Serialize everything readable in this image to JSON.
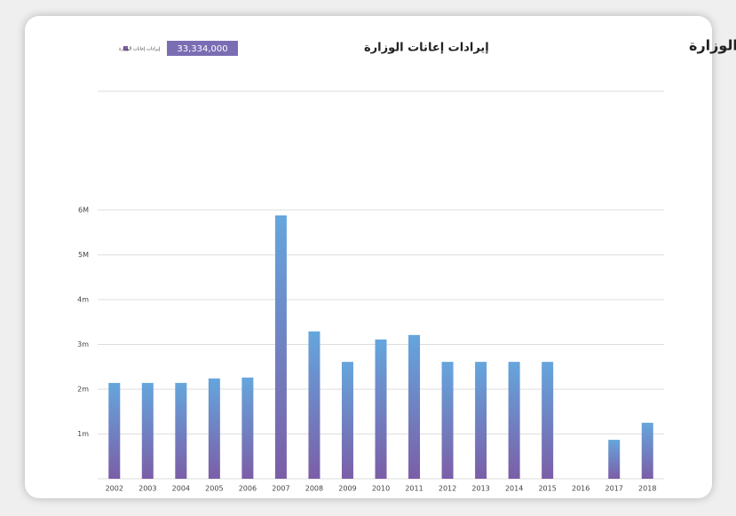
{
  "header": {
    "title": "إيرادات إعانات الوزارة",
    "kpi_label": "إيرادات إعانات الوزارة",
    "kpi_value": "33,334,000"
  },
  "chart_data": {
    "type": "bar",
    "categories": [
      "2002",
      "2003",
      "2004",
      "2005",
      "2006",
      "2007",
      "2008",
      "2009",
      "2010",
      "2011",
      "2012",
      "2013",
      "2014",
      "2015",
      "2016",
      "2017",
      "2018"
    ],
    "series": [
      {
        "name": "إيرادات إعانات الوزارة",
        "color": "#7b5ea7",
        "gradient_color": "#65a6dd",
        "values": [
          2140000,
          2140000,
          2140000,
          2240000,
          2260000,
          5880000,
          3290000,
          2610000,
          3110000,
          3210000,
          2610000,
          2610000,
          2610000,
          2610000,
          0,
          870000,
          1250000
        ]
      }
    ],
    "ylim": [
      0,
      8650000
    ],
    "yticks": [
      {
        "value": 1000000,
        "label": "1m"
      },
      {
        "value": 2000000,
        "label": "2m"
      },
      {
        "value": 3000000,
        "label": "3m"
      },
      {
        "value": 4000000,
        "label": "4m"
      },
      {
        "value": 5000000,
        "label": "5M"
      },
      {
        "value": 6000000,
        "label": "6M"
      }
    ],
    "grid": true,
    "legend": "top-left"
  }
}
